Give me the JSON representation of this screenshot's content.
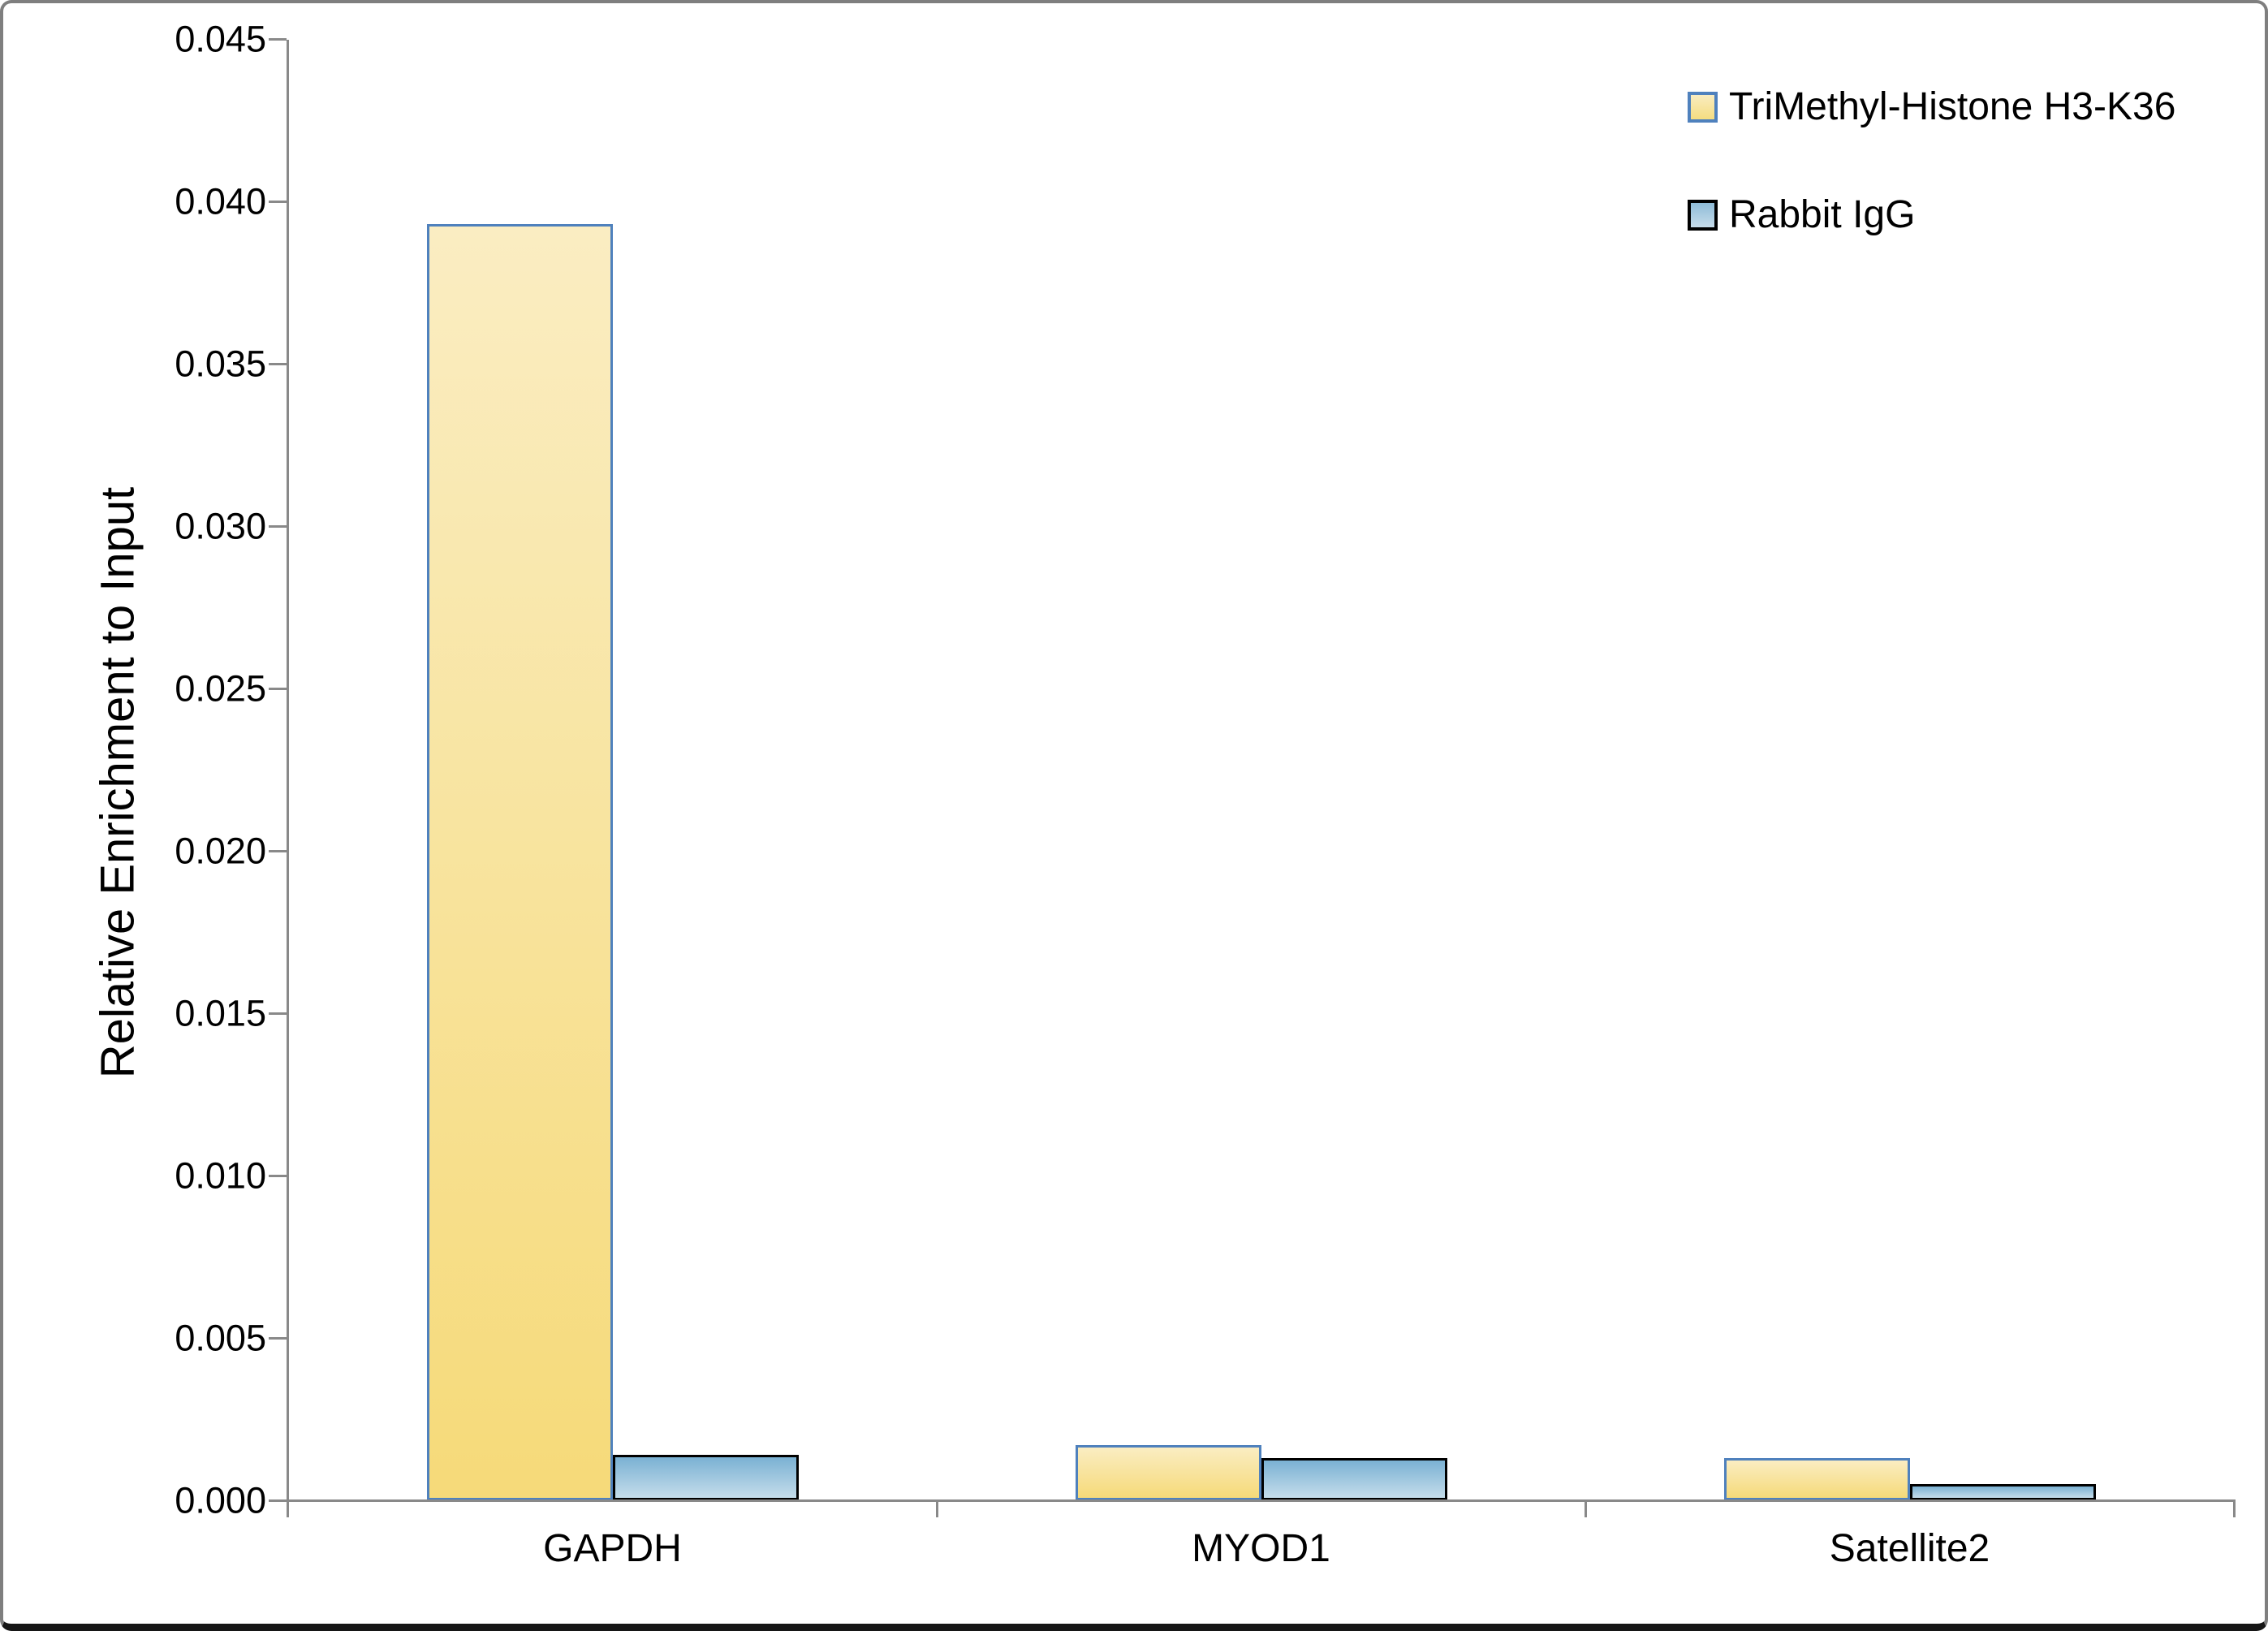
{
  "chart_data": {
    "type": "bar",
    "title": "",
    "ylabel": "Relative Enrichment to Input",
    "xlabel": "",
    "categories": [
      "GAPDH",
      "MYOD1",
      "Satellite2"
    ],
    "series": [
      {
        "name": "TriMethyl-Histone H3-K36",
        "values": [
          0.0393,
          0.0017,
          0.0013
        ],
        "fill_top": "#FAEDC2",
        "fill_bottom": "#F6DA79",
        "border": "#4F81BD",
        "swatch_top": "#F9ECC0",
        "swatch_bottom": "#F5DD80",
        "swatch_border": "#4F81BD"
      },
      {
        "name": "Rabbit IgG",
        "values": [
          0.0014,
          0.0013,
          0.0005
        ],
        "fill_top": "#7AB1D3",
        "fill_bottom": "#C5DDEB",
        "border": "#000000",
        "swatch_top": "#8FBCD8",
        "swatch_bottom": "#C6DCEA",
        "swatch_border": "#000000"
      }
    ],
    "ylim": [
      0,
      0.045
    ],
    "ytick_step": 0.005,
    "ytick_labels": [
      "0.000",
      "0.005",
      "0.010",
      "0.015",
      "0.020",
      "0.025",
      "0.030",
      "0.035",
      "0.040",
      "0.045"
    ],
    "grid": false,
    "legend_position": "top-right",
    "axis_color": "#898989",
    "text_color": "#000000"
  }
}
